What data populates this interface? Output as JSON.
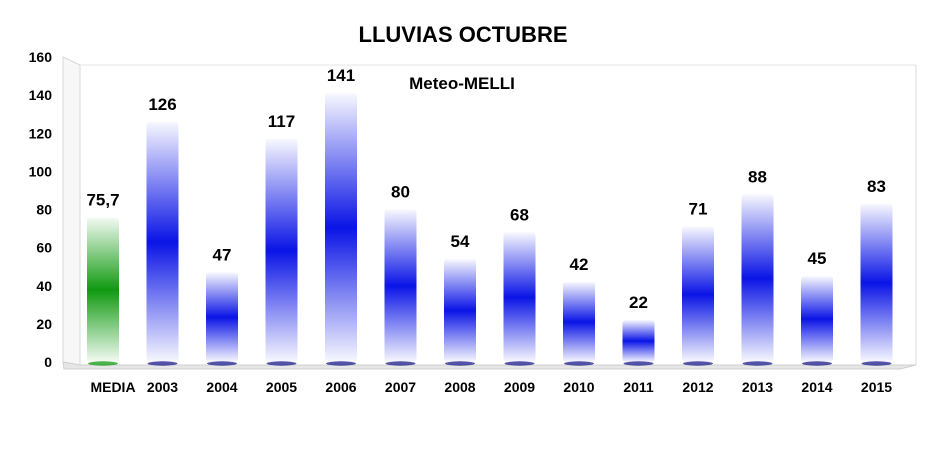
{
  "chart_data": {
    "type": "bar",
    "title": "LLUVIAS OCTUBRE",
    "subtitle": "Meteo-MELLI",
    "categories": [
      "MEDIA",
      "2003",
      "2004",
      "2005",
      "2006",
      "2007",
      "2008",
      "2009",
      "2010",
      "2011",
      "2012",
      "2013",
      "2014",
      "2015"
    ],
    "values": [
      75.7,
      126,
      47,
      117,
      141,
      80,
      54,
      68,
      42,
      22,
      71,
      88,
      45,
      83
    ],
    "data_labels": [
      "75,7",
      "126",
      "47",
      "117",
      "141",
      "80",
      "54",
      "68",
      "42",
      "22",
      "71",
      "88",
      "45",
      "83"
    ],
    "yticks": [
      "0",
      "20",
      "40",
      "60",
      "80",
      "100",
      "120",
      "140",
      "160"
    ],
    "ylim": [
      0,
      160
    ],
    "xlabel": "",
    "ylabel": "",
    "grid": false,
    "legend": "none",
    "colors": {
      "media_bar": "#109a10",
      "year_bars": "#0a14e6",
      "frame": "#d8d8d8"
    }
  }
}
